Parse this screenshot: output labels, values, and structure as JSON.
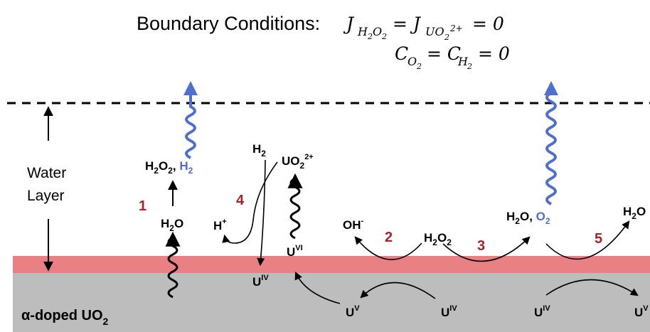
{
  "boundary": {
    "title": "Boundary Conditions:",
    "flux_equation": "J_{H2O2} = J_{UO2^2+} = 0",
    "concentration_equation": "C_{O2} = C_{H2} = 0"
  },
  "labels": {
    "water": "Water",
    "layer": "Layer"
  },
  "substrate": {
    "text": "α-doped UO",
    "sub": "2"
  },
  "steps": [
    "1",
    "2",
    "3",
    "4",
    "5"
  ],
  "species": [
    "H2O2, H2",
    "H2O",
    "H2",
    "UO2 2+",
    "H+",
    "U VI",
    "U IV",
    "OH-",
    "H2O2",
    "H2O, O2",
    "H2O",
    "U V",
    "U IV",
    "U IV",
    "U V"
  ],
  "colors": {
    "surface_layer": "#e98184",
    "substrate": "#bdbdbd",
    "step_numbers": "#a3252a",
    "gas_species": "#4f6fd0"
  }
}
